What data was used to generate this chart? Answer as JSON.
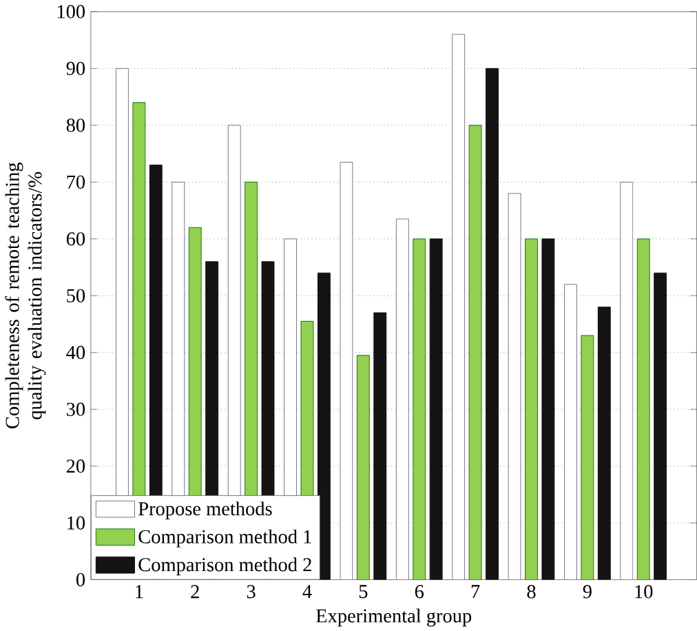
{
  "chart_data": {
    "type": "bar",
    "xlabel": "Experimental group",
    "ylabel": "Completeness of remote teaching quality evaluation indicators/%",
    "categories": [
      "1",
      "2",
      "3",
      "4",
      "5",
      "6",
      "7",
      "8",
      "9",
      "10"
    ],
    "series": [
      {
        "name": "Propose methods",
        "color": "#ffffff",
        "values": [
          90,
          70,
          80,
          60,
          73.5,
          63.5,
          96,
          68,
          52,
          70
        ]
      },
      {
        "name": "Comparison method 1",
        "color": "#92d050",
        "values": [
          84,
          62,
          70,
          45.5,
          39.5,
          60,
          80,
          60,
          43,
          60
        ]
      },
      {
        "name": "Comparison method 2",
        "color": "#141414",
        "values": [
          73,
          56,
          56,
          54,
          47,
          60,
          90,
          60,
          48,
          54
        ]
      }
    ],
    "ylim": [
      0,
      100
    ],
    "yticks": [
      0,
      10,
      20,
      30,
      40,
      50,
      60,
      70,
      80,
      90,
      100
    ],
    "grid": "y",
    "legend": "bottom left"
  }
}
